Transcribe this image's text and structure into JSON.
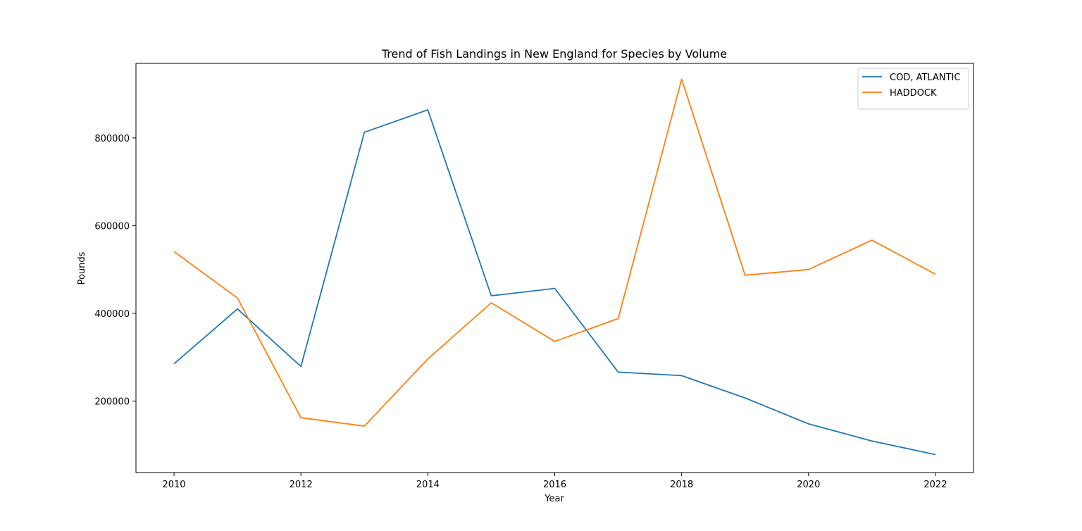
{
  "chart_data": {
    "type": "line",
    "title": "Trend of Fish Landings in New England for Species by Volume",
    "xlabel": "Year",
    "ylabel": "Pounds",
    "x": [
      2010,
      2011,
      2012,
      2013,
      2014,
      2015,
      2016,
      2017,
      2018,
      2019,
      2020,
      2021,
      2022
    ],
    "xticks": [
      2010,
      2012,
      2014,
      2016,
      2018,
      2020,
      2022
    ],
    "yticks": [
      200000,
      400000,
      600000,
      800000
    ],
    "xlim": [
      2009.4,
      2022.6
    ],
    "ylim": [
      37000,
      970000
    ],
    "grid": false,
    "legend_position": "top-right",
    "series": [
      {
        "name": "COD, ATLANTIC",
        "color": "#1f77b4",
        "values": [
          285000,
          410000,
          279000,
          813000,
          864000,
          440000,
          457000,
          266000,
          258000,
          207000,
          148000,
          109000,
          78000
        ]
      },
      {
        "name": "HADDOCK",
        "color": "#ff7f0e",
        "values": [
          541000,
          435000,
          162000,
          143000,
          296000,
          424000,
          336000,
          388000,
          934000,
          487000,
          500000,
          567000,
          489000
        ]
      }
    ]
  }
}
